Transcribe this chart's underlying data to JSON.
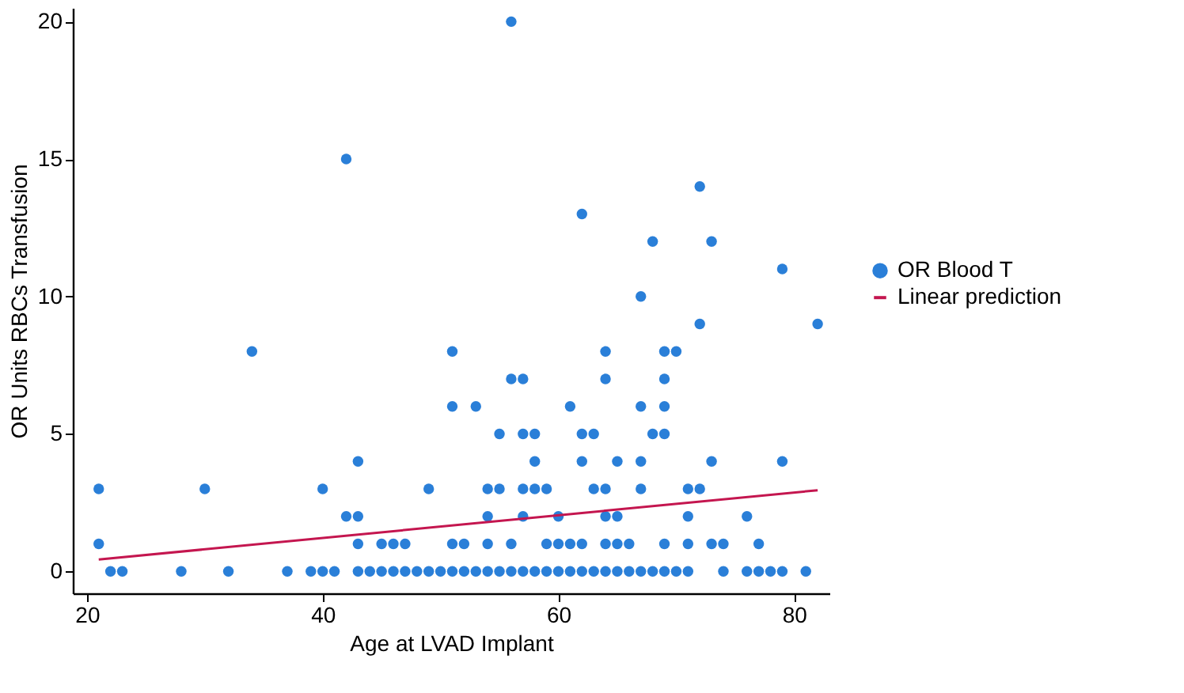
{
  "chart_data": {
    "type": "scatter",
    "xlabel": "Age at LVAD Implant",
    "ylabel": "OR Units RBCs Transfusion",
    "xlim": [
      18.8,
      83
    ],
    "xticks": [
      20,
      40,
      60,
      80
    ],
    "ylim": [
      -0.8,
      20.5
    ],
    "yticks": [
      0,
      5,
      10,
      15,
      20
    ],
    "grid": false,
    "legend": "right",
    "marker": "circle",
    "series": [
      {
        "name": "OR Blood T",
        "color": "#2a7fd8",
        "x": [
          22,
          23,
          28,
          32,
          37,
          39,
          40,
          41,
          43,
          44,
          45,
          46,
          47,
          48,
          49,
          50,
          51,
          52,
          53,
          54,
          55,
          56,
          57,
          58,
          59,
          60,
          61,
          62,
          63,
          64,
          65,
          66,
          67,
          68,
          69,
          70,
          71,
          74,
          76,
          77,
          78,
          79,
          81,
          21,
          43,
          45,
          46,
          47,
          51,
          52,
          54,
          56,
          59,
          60,
          61,
          62,
          64,
          65,
          66,
          69,
          71,
          73,
          74,
          77,
          42,
          43,
          54,
          57,
          60,
          64,
          65,
          71,
          76,
          21,
          30,
          40,
          49,
          54,
          55,
          57,
          58,
          59,
          63,
          64,
          67,
          71,
          72,
          43,
          58,
          62,
          65,
          67,
          73,
          79,
          55,
          57,
          58,
          62,
          63,
          68,
          69,
          51,
          53,
          61,
          67,
          69,
          56,
          57,
          64,
          69,
          34,
          51,
          64,
          69,
          70,
          72,
          82,
          67,
          79,
          68,
          73,
          62,
          72,
          42,
          56
        ],
        "values": [
          0,
          0,
          0,
          0,
          0,
          0,
          0,
          0,
          0,
          0,
          0,
          0,
          0,
          0,
          0,
          0,
          0,
          0,
          0,
          0,
          0,
          0,
          0,
          0,
          0,
          0,
          0,
          0,
          0,
          0,
          0,
          0,
          0,
          0,
          0,
          0,
          0,
          0,
          0,
          0,
          0,
          0,
          0,
          1,
          1,
          1,
          1,
          1,
          1,
          1,
          1,
          1,
          1,
          1,
          1,
          1,
          1,
          1,
          1,
          1,
          1,
          1,
          1,
          1,
          2,
          2,
          2,
          2,
          2,
          2,
          2,
          2,
          2,
          3,
          3,
          3,
          3,
          3,
          3,
          3,
          3,
          3,
          3,
          3,
          3,
          3,
          3,
          4,
          4,
          4,
          4,
          4,
          4,
          4,
          5,
          5,
          5,
          5,
          5,
          5,
          5,
          6,
          6,
          6,
          6,
          6,
          7,
          7,
          7,
          7,
          8,
          8,
          8,
          8,
          8,
          9,
          9,
          10,
          11,
          12,
          12,
          13,
          14,
          15,
          20
        ]
      },
      {
        "name": "Linear prediction",
        "type": "line",
        "color": "#c4164f",
        "line_style": "solid",
        "marker": "none",
        "x": [
          21,
          82
        ],
        "values": [
          0.43,
          2.95
        ]
      }
    ]
  }
}
